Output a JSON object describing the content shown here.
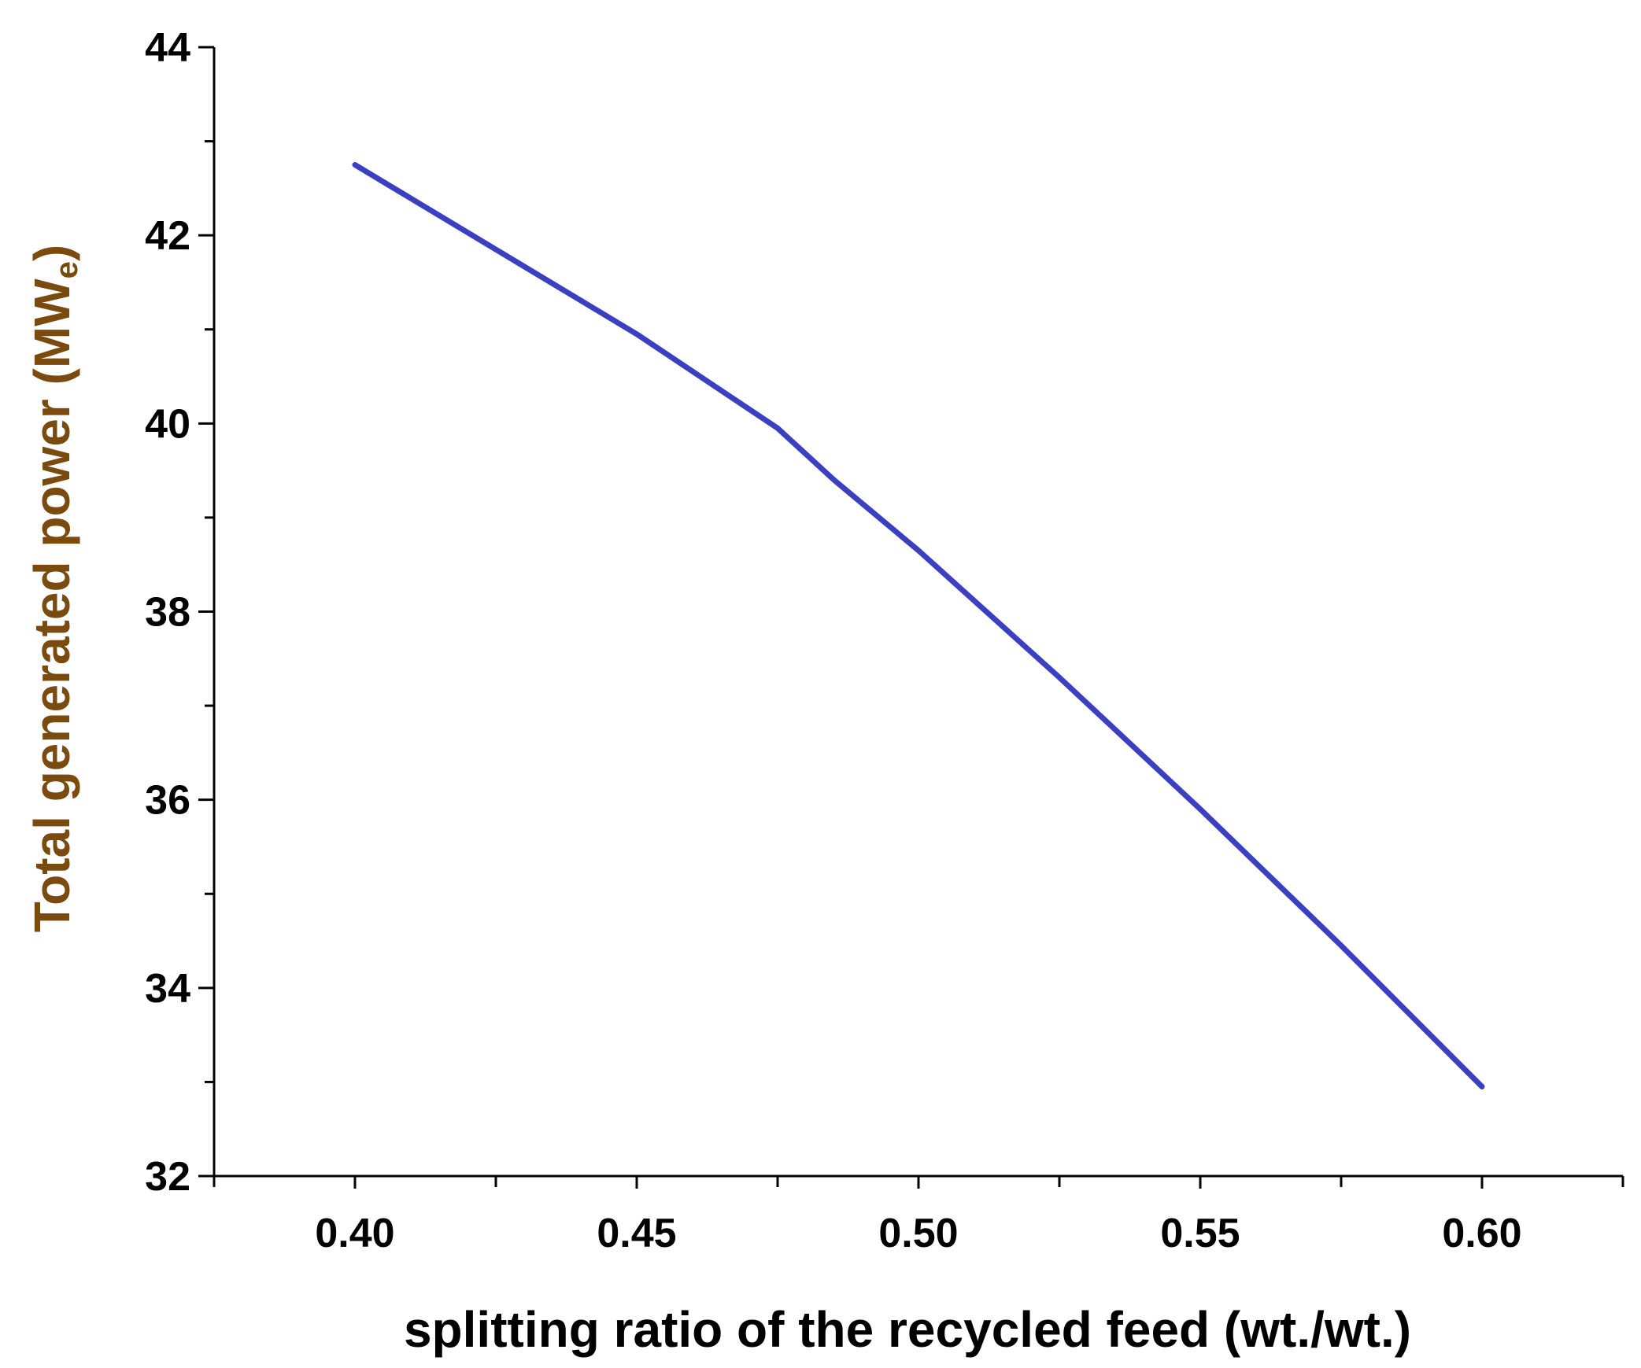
{
  "chart_data": {
    "type": "line",
    "title": "",
    "xlabel": "splitting ratio of the recycled feed (wt./wt.)",
    "ylabel": {
      "main": "Total generated power (MW",
      "subscript": "e",
      "close": ")"
    },
    "xlim": [
      0.375,
      0.625
    ],
    "ylim": [
      32,
      44
    ],
    "x_major_ticks": [
      0.4,
      0.45,
      0.5,
      0.55,
      0.6
    ],
    "x_tick_labels": [
      "0.40",
      "0.45",
      "0.50",
      "0.55",
      "0.60"
    ],
    "x_minor_ticks": [
      0.375,
      0.425,
      0.475,
      0.525,
      0.575,
      0.625
    ],
    "y_major_ticks": [
      32,
      34,
      36,
      38,
      40,
      42,
      44
    ],
    "y_tick_labels": [
      "32",
      "34",
      "36",
      "38",
      "40",
      "42",
      "44"
    ],
    "y_minor_ticks": [
      33,
      35,
      37,
      39,
      41,
      43
    ],
    "grid": false,
    "series": [
      {
        "name": "Total generated power",
        "color": "#3b3fc2",
        "x": [
          0.4,
          0.425,
          0.45,
          0.465,
          0.475,
          0.485,
          0.5,
          0.525,
          0.55,
          0.575,
          0.6
        ],
        "y": [
          42.75,
          41.85,
          40.95,
          40.35,
          39.95,
          39.4,
          38.65,
          37.3,
          35.9,
          34.45,
          32.95
        ]
      }
    ],
    "colors": {
      "axis": "#000000",
      "ylabel": "#7a4a0f",
      "xlabel": "#000000"
    }
  }
}
